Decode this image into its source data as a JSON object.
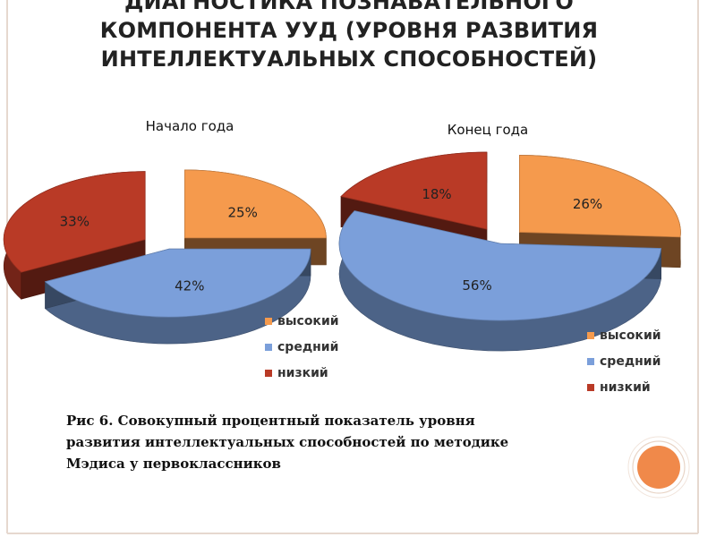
{
  "slide": {
    "title_lines": [
      "ДИАГНОСТИКА ПОЗНАВАТЕЛЬНОГО",
      "КОМПОНЕНТА  УУД (УРОВНЯ РАЗВИТИЯ",
      "ИНТЕЛЛЕКТУАЛЬНЫХ СПОСОБНОСТЕЙ)"
    ],
    "caption": {
      "label": "Рис 6",
      "text": ". Совокупный процентный показатель уровня развития интеллектуальных способностей по методике Мэдиса у первоклассников"
    },
    "accent_color": "#f0894a"
  },
  "chart_data": [
    {
      "type": "pie",
      "title": "Начало года",
      "categories": [
        "высокий",
        "средний",
        "низкий"
      ],
      "values": [
        25,
        42,
        33
      ],
      "labels": [
        "25%",
        "42%",
        "33%"
      ],
      "colors": [
        "#f59a4d",
        "#7b9fda",
        "#b93a26"
      ],
      "legend": [
        "высокий",
        "средний",
        "низкий"
      ],
      "legend_position": "bottom-right",
      "exploded": true,
      "three_d": true
    },
    {
      "type": "pie",
      "title": "Конец года",
      "categories": [
        "высокий",
        "средний",
        "низкий"
      ],
      "values": [
        26,
        56,
        18
      ],
      "labels": [
        "26%",
        "56%",
        "18%"
      ],
      "colors": [
        "#f59a4d",
        "#7b9fda",
        "#b93a26"
      ],
      "legend": [
        "высокий",
        "средний",
        "низкий"
      ],
      "legend_position": "bottom-right",
      "exploded": true,
      "three_d": true
    }
  ]
}
